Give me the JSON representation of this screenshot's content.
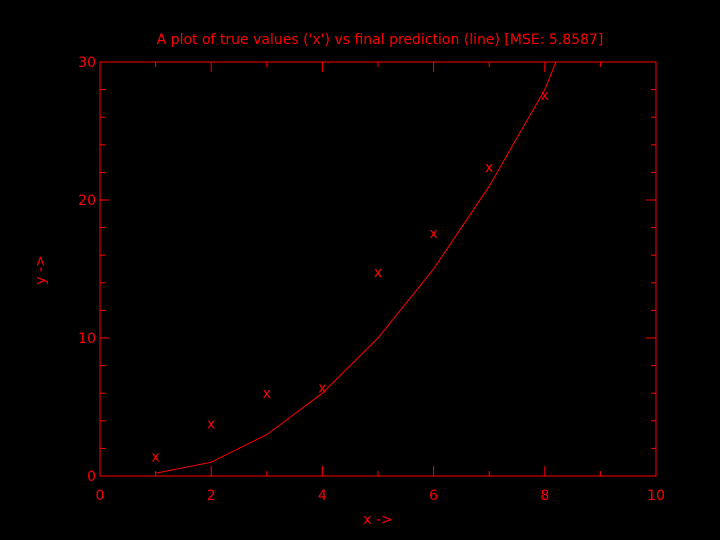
{
  "colors": {
    "background": "#000000",
    "foreground": "#ff0000"
  },
  "chart_data": {
    "type": "line",
    "title": "A plot of true values ('x') vs final prediction (line) [MSE: 5.8587]",
    "xlabel": "x ->",
    "ylabel": "y ->",
    "xlim": [
      0,
      10
    ],
    "ylim": [
      0,
      30
    ],
    "x_ticks": [
      "0",
      "2",
      "4",
      "6",
      "8",
      "10"
    ],
    "y_ticks": [
      "0",
      "10",
      "20",
      "30"
    ],
    "grid": false,
    "series": [
      {
        "kind": "scatter",
        "marker": "x",
        "x": [
          1,
          2,
          3,
          4,
          5,
          6,
          7,
          8
        ],
        "y": [
          1.4,
          3.8,
          6.0,
          6.4,
          14.8,
          17.6,
          22.4,
          27.6
        ]
      },
      {
        "kind": "line",
        "x": [
          1,
          2,
          3,
          4,
          5,
          6,
          7,
          8,
          8.2
        ],
        "y": [
          0.2,
          1.0,
          3.0,
          6.0,
          10.0,
          15.0,
          21.0,
          28.0,
          30.0
        ]
      }
    ]
  }
}
